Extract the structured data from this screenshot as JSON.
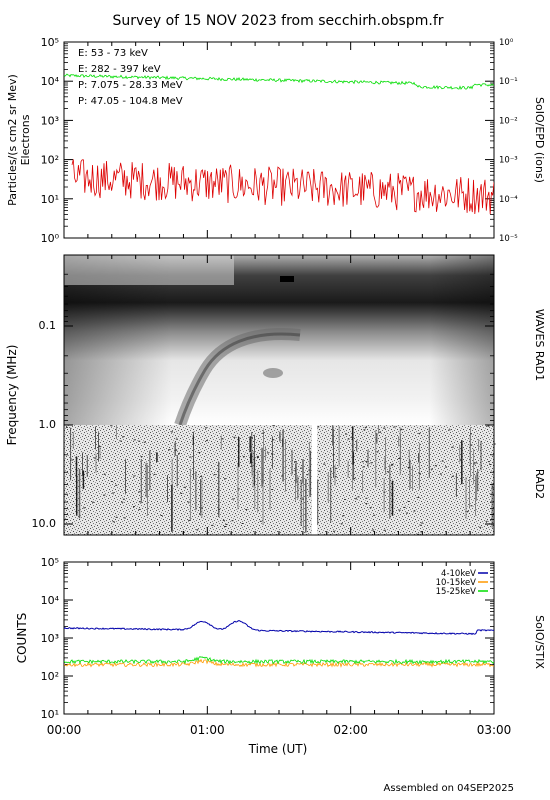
{
  "title": "Survey of 15 NOV 2023 from secchirh.obspm.fr",
  "footer": "Assembled on 04SEP2025",
  "chart_data": [
    {
      "type": "line",
      "panel": "SoIO/EPD",
      "ylabel": "Particles/(s cm2 sr Mev)",
      "ylabel2": "Electrons",
      "right_label": "SoIO/EPD (ions)",
      "yscale": "log",
      "ylim": [
        1,
        100000
      ],
      "y_ticks": [
        "10⁰",
        "10¹",
        "10²",
        "10³",
        "10⁴",
        "10⁵"
      ],
      "right_yscale": "log",
      "right_ylim": [
        1e-05,
        1
      ],
      "right_ticks": [
        "10⁻⁵",
        "10⁻⁴",
        "10⁻³",
        "10⁻²",
        "10⁻¹",
        "10⁰"
      ],
      "series": [
        {
          "name": "E: 53 - 73 keV",
          "color": "#00dd00",
          "approx_start": 14000,
          "approx_end": 8000
        },
        {
          "name": "E: 282 - 397 keV",
          "color": "#dd0000",
          "approx_start": 35,
          "approx_end": 12
        },
        {
          "name": "P: 7.075 - 28.33 MeV",
          "color": "#000000"
        },
        {
          "name": "P: 47.05 - 104.8 MeV",
          "color": "#0000cc"
        }
      ]
    },
    {
      "type": "heatmap",
      "panel": "WAVES",
      "ylabel": "Frequency (MHz)",
      "yscale": "log",
      "ylim": [
        0.025,
        12
      ],
      "y_ticks": [
        "0.1",
        "1.0",
        "10.0"
      ],
      "sub_panels": [
        "WAVES RAD1",
        "RAD2"
      ],
      "data_gap_time": "01:43"
    },
    {
      "type": "line",
      "panel": "SoIO/STIX",
      "ylabel": "COUNTS",
      "right_label": "SoIO/STIX",
      "yscale": "log",
      "ylim": [
        10,
        100000
      ],
      "y_ticks": [
        "10¹",
        "10²",
        "10³",
        "10⁴",
        "10⁵"
      ],
      "series": [
        {
          "name": "4-10keV",
          "color": "#0000aa",
          "approx_level": 1400,
          "peaks": [
            {
              "time": "00:58",
              "value": 2500
            },
            {
              "time": "01:13",
              "value": 2600
            }
          ]
        },
        {
          "name": "10-15keV",
          "color": "#ff9900",
          "approx_level": 200
        },
        {
          "name": "15-25keV",
          "color": "#00dd00",
          "approx_level": 240
        }
      ]
    }
  ],
  "x_axis": {
    "label": "Time (UT)",
    "tick_labels": [
      "00:00",
      "01:00",
      "02:00",
      "03:00"
    ],
    "range_hours": [
      0,
      3
    ]
  }
}
